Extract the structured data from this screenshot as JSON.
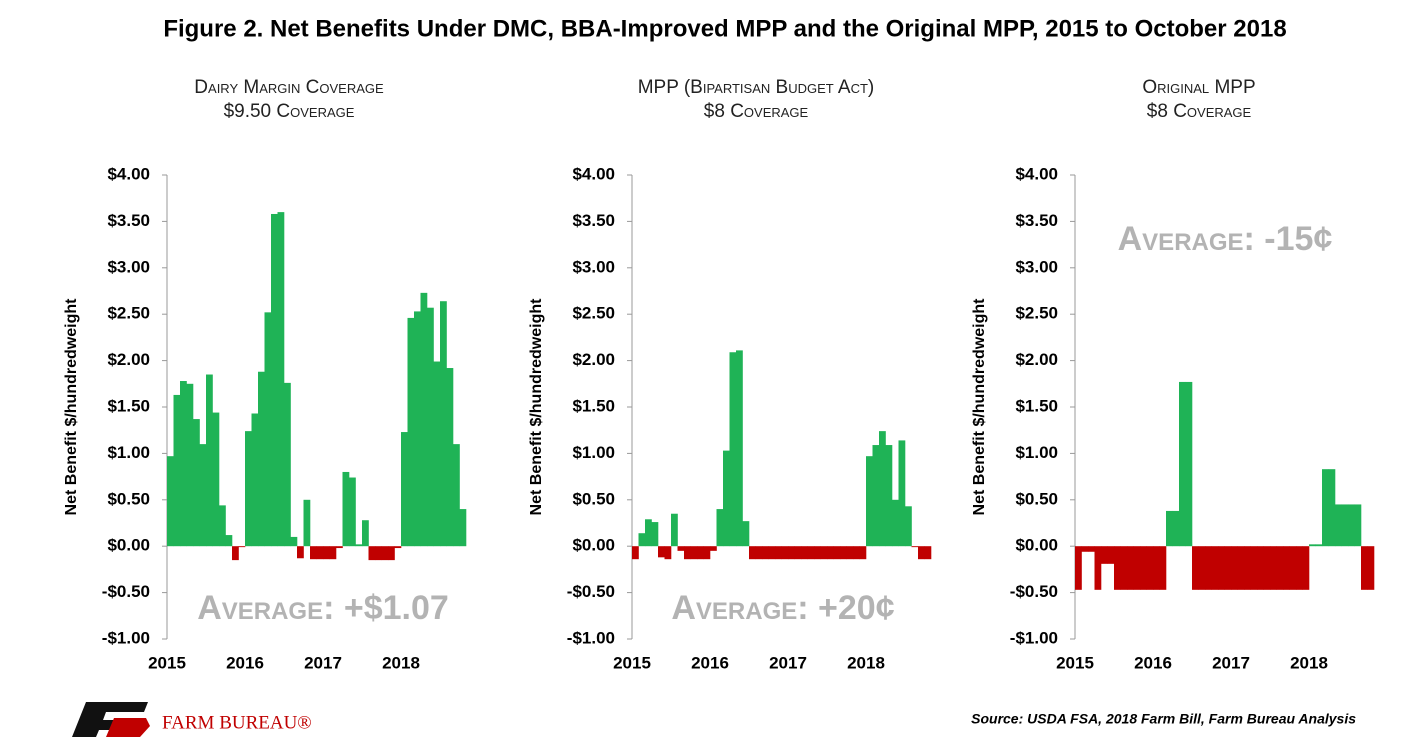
{
  "title": "Figure 2. Net Benefits Under DMC, BBA-Improved MPP and the Original MPP, 2015 to October 2018",
  "source": "Source: USDA FSA, 2018 Farm Bill, Farm Bureau Analysis",
  "logo": "FARM BUREAU®",
  "chart_data": [
    {
      "type": "bar",
      "title": "Dairy Margin Coverage",
      "subtitle": "$9.50 Coverage",
      "y_label": "Net Benefit $/hundredweight",
      "annotation": "Average: +$1.07",
      "positive_color": "#1fb356",
      "negative_color": "#c00000",
      "categories": [
        "2015",
        null,
        null,
        null,
        null,
        null,
        null,
        null,
        null,
        null,
        null,
        null,
        "2016",
        null,
        null,
        null,
        null,
        null,
        null,
        null,
        null,
        null,
        null,
        null,
        "2017",
        null,
        null,
        null,
        null,
        null,
        null,
        null,
        null,
        null,
        null,
        null,
        "2018",
        null,
        null,
        null,
        null,
        null,
        null,
        null,
        null,
        null
      ],
      "values": [
        0.97,
        1.63,
        1.78,
        1.75,
        1.37,
        1.1,
        1.85,
        1.44,
        0.44,
        0.12,
        -0.15,
        -0.01,
        1.24,
        1.43,
        1.88,
        2.52,
        3.58,
        3.6,
        1.76,
        0.1,
        -0.13,
        0.5,
        -0.14,
        -0.14,
        -0.14,
        -0.14,
        -0.02,
        0.8,
        0.74,
        0.02,
        0.28,
        -0.15,
        -0.15,
        -0.15,
        -0.15,
        -0.02,
        1.23,
        2.46,
        2.53,
        2.73,
        2.57,
        1.99,
        2.64,
        1.92,
        1.1,
        0.4
      ],
      "ylim": [
        -1,
        4
      ],
      "yticks": [
        {
          "value": -1,
          "label": "-$1.00"
        },
        {
          "value": -0.5,
          "label": "-$0.50"
        },
        {
          "value": 0,
          "label": "$0.00"
        },
        {
          "value": 0.5,
          "label": "$0.50"
        },
        {
          "value": 1,
          "label": "$1.00"
        },
        {
          "value": 1.5,
          "label": "$1.50"
        },
        {
          "value": 2,
          "label": "$2.00"
        },
        {
          "value": 2.5,
          "label": "$2.50"
        },
        {
          "value": 3,
          "label": "$3.00"
        },
        {
          "value": 3.5,
          "label": "$3.50"
        },
        {
          "value": 4,
          "label": "$4.00"
        }
      ]
    },
    {
      "type": "bar",
      "title": "MPP (Bipartisan Budget Act)",
      "subtitle": "$8 Coverage",
      "y_label": "Net Benefit $/hundredweight",
      "annotation": "Average: +20¢",
      "positive_color": "#1fb356",
      "negative_color": "#c00000",
      "categories": [
        "2015",
        null,
        null,
        null,
        null,
        null,
        null,
        null,
        null,
        null,
        null,
        null,
        "2016",
        null,
        null,
        null,
        null,
        null,
        null,
        null,
        null,
        null,
        null,
        null,
        "2017",
        null,
        null,
        null,
        null,
        null,
        null,
        null,
        null,
        null,
        null,
        null,
        "2018",
        null,
        null,
        null,
        null,
        null,
        null,
        null,
        null,
        null
      ],
      "values": [
        -0.14,
        0.14,
        0.29,
        0.26,
        -0.12,
        -0.14,
        0.35,
        -0.05,
        -0.14,
        -0.14,
        -0.14,
        -0.14,
        -0.05,
        0.4,
        1.03,
        2.09,
        2.11,
        0.27,
        -0.14,
        -0.14,
        -0.14,
        -0.14,
        -0.14,
        -0.14,
        -0.14,
        -0.14,
        -0.14,
        -0.14,
        -0.14,
        -0.14,
        -0.14,
        -0.14,
        -0.14,
        -0.14,
        -0.14,
        -0.14,
        0.97,
        1.09,
        1.24,
        1.09,
        0.5,
        1.14,
        0.43,
        -0.01,
        -0.14,
        -0.14
      ],
      "ylim": [
        -1,
        4
      ],
      "yticks": [
        {
          "value": -1,
          "label": "-$1.00"
        },
        {
          "value": -0.5,
          "label": "-$0.50"
        },
        {
          "value": 0,
          "label": "$0.00"
        },
        {
          "value": 0.5,
          "label": "$0.50"
        },
        {
          "value": 1,
          "label": "$1.00"
        },
        {
          "value": 1.5,
          "label": "$1.50"
        },
        {
          "value": 2,
          "label": "$2.00"
        },
        {
          "value": 2.5,
          "label": "$2.50"
        },
        {
          "value": 3,
          "label": "$3.00"
        },
        {
          "value": 3.5,
          "label": "$3.50"
        },
        {
          "value": 4,
          "label": "$4.00"
        }
      ]
    },
    {
      "type": "bar",
      "title": "Original MPP",
      "subtitle": "$8 Coverage",
      "y_label": "Net Benefit $/hundredweight",
      "annotation": "Average: -15¢",
      "positive_color": "#1fb356",
      "negative_color": "#c00000",
      "categories": [
        "2015",
        null,
        null,
        null,
        null,
        null,
        null,
        null,
        null,
        null,
        null,
        null,
        "2016",
        null,
        null,
        null,
        null,
        null,
        null,
        null,
        null,
        null,
        null,
        null,
        "2017",
        null,
        null,
        null,
        null,
        null,
        null,
        null,
        null,
        null,
        null,
        null,
        "2018",
        null,
        null,
        null,
        null,
        null,
        null,
        null,
        null,
        null
      ],
      "values": [
        -0.47,
        -0.06,
        -0.06,
        -0.47,
        -0.19,
        -0.19,
        -0.47,
        -0.47,
        -0.47,
        -0.47,
        -0.47,
        -0.47,
        -0.47,
        -0.47,
        0.38,
        0.38,
        1.77,
        1.77,
        -0.47,
        -0.47,
        -0.47,
        -0.47,
        -0.47,
        -0.47,
        -0.47,
        -0.47,
        -0.47,
        -0.47,
        -0.47,
        -0.47,
        -0.47,
        -0.47,
        -0.47,
        -0.47,
        -0.47,
        -0.47,
        0.02,
        0.02,
        0.83,
        0.83,
        0.45,
        0.45,
        0.45,
        0.45,
        -0.47,
        -0.47
      ],
      "ylim": [
        -1,
        4
      ],
      "yticks": [
        {
          "value": -1,
          "label": "-$1.00"
        },
        {
          "value": -0.5,
          "label": "-$0.50"
        },
        {
          "value": 0,
          "label": "$0.00"
        },
        {
          "value": 0.5,
          "label": "$0.50"
        },
        {
          "value": 1,
          "label": "$1.00"
        },
        {
          "value": 1.5,
          "label": "$1.50"
        },
        {
          "value": 2,
          "label": "$2.00"
        },
        {
          "value": 2.5,
          "label": "$2.50"
        },
        {
          "value": 3,
          "label": "$3.00"
        },
        {
          "value": 3.5,
          "label": "$3.50"
        },
        {
          "value": 4,
          "label": "$4.00"
        }
      ]
    }
  ]
}
